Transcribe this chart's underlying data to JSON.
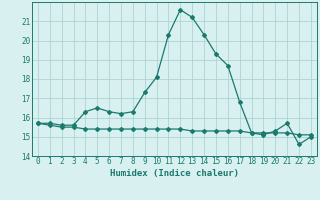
{
  "xlabel": "Humidex (Indice chaleur)",
  "x": [
    0,
    1,
    2,
    3,
    4,
    5,
    6,
    7,
    8,
    9,
    10,
    11,
    12,
    13,
    14,
    15,
    16,
    17,
    18,
    19,
    20,
    21,
    22,
    23
  ],
  "line1": [
    15.7,
    15.7,
    15.6,
    15.6,
    16.3,
    16.5,
    16.3,
    16.2,
    16.3,
    17.3,
    18.1,
    20.3,
    21.6,
    21.2,
    20.3,
    19.3,
    18.7,
    16.8,
    15.2,
    15.1,
    15.3,
    15.7,
    14.6,
    15.0
  ],
  "line2": [
    15.7,
    15.6,
    15.5,
    15.5,
    15.4,
    15.4,
    15.4,
    15.4,
    15.4,
    15.4,
    15.4,
    15.4,
    15.4,
    15.3,
    15.3,
    15.3,
    15.3,
    15.3,
    15.2,
    15.2,
    15.2,
    15.2,
    15.1,
    15.1
  ],
  "line_color": "#1a7a6e",
  "bg_color": "#d8f0f0",
  "grid_color": "#aed4d4",
  "ylim": [
    14,
    22
  ],
  "xlim": [
    -0.5,
    23.5
  ],
  "yticks": [
    14,
    15,
    16,
    17,
    18,
    19,
    20,
    21
  ],
  "xticks": [
    0,
    1,
    2,
    3,
    4,
    5,
    6,
    7,
    8,
    9,
    10,
    11,
    12,
    13,
    14,
    15,
    16,
    17,
    18,
    19,
    20,
    21,
    22,
    23
  ],
  "tick_fontsize": 5.5,
  "xlabel_fontsize": 6.5
}
